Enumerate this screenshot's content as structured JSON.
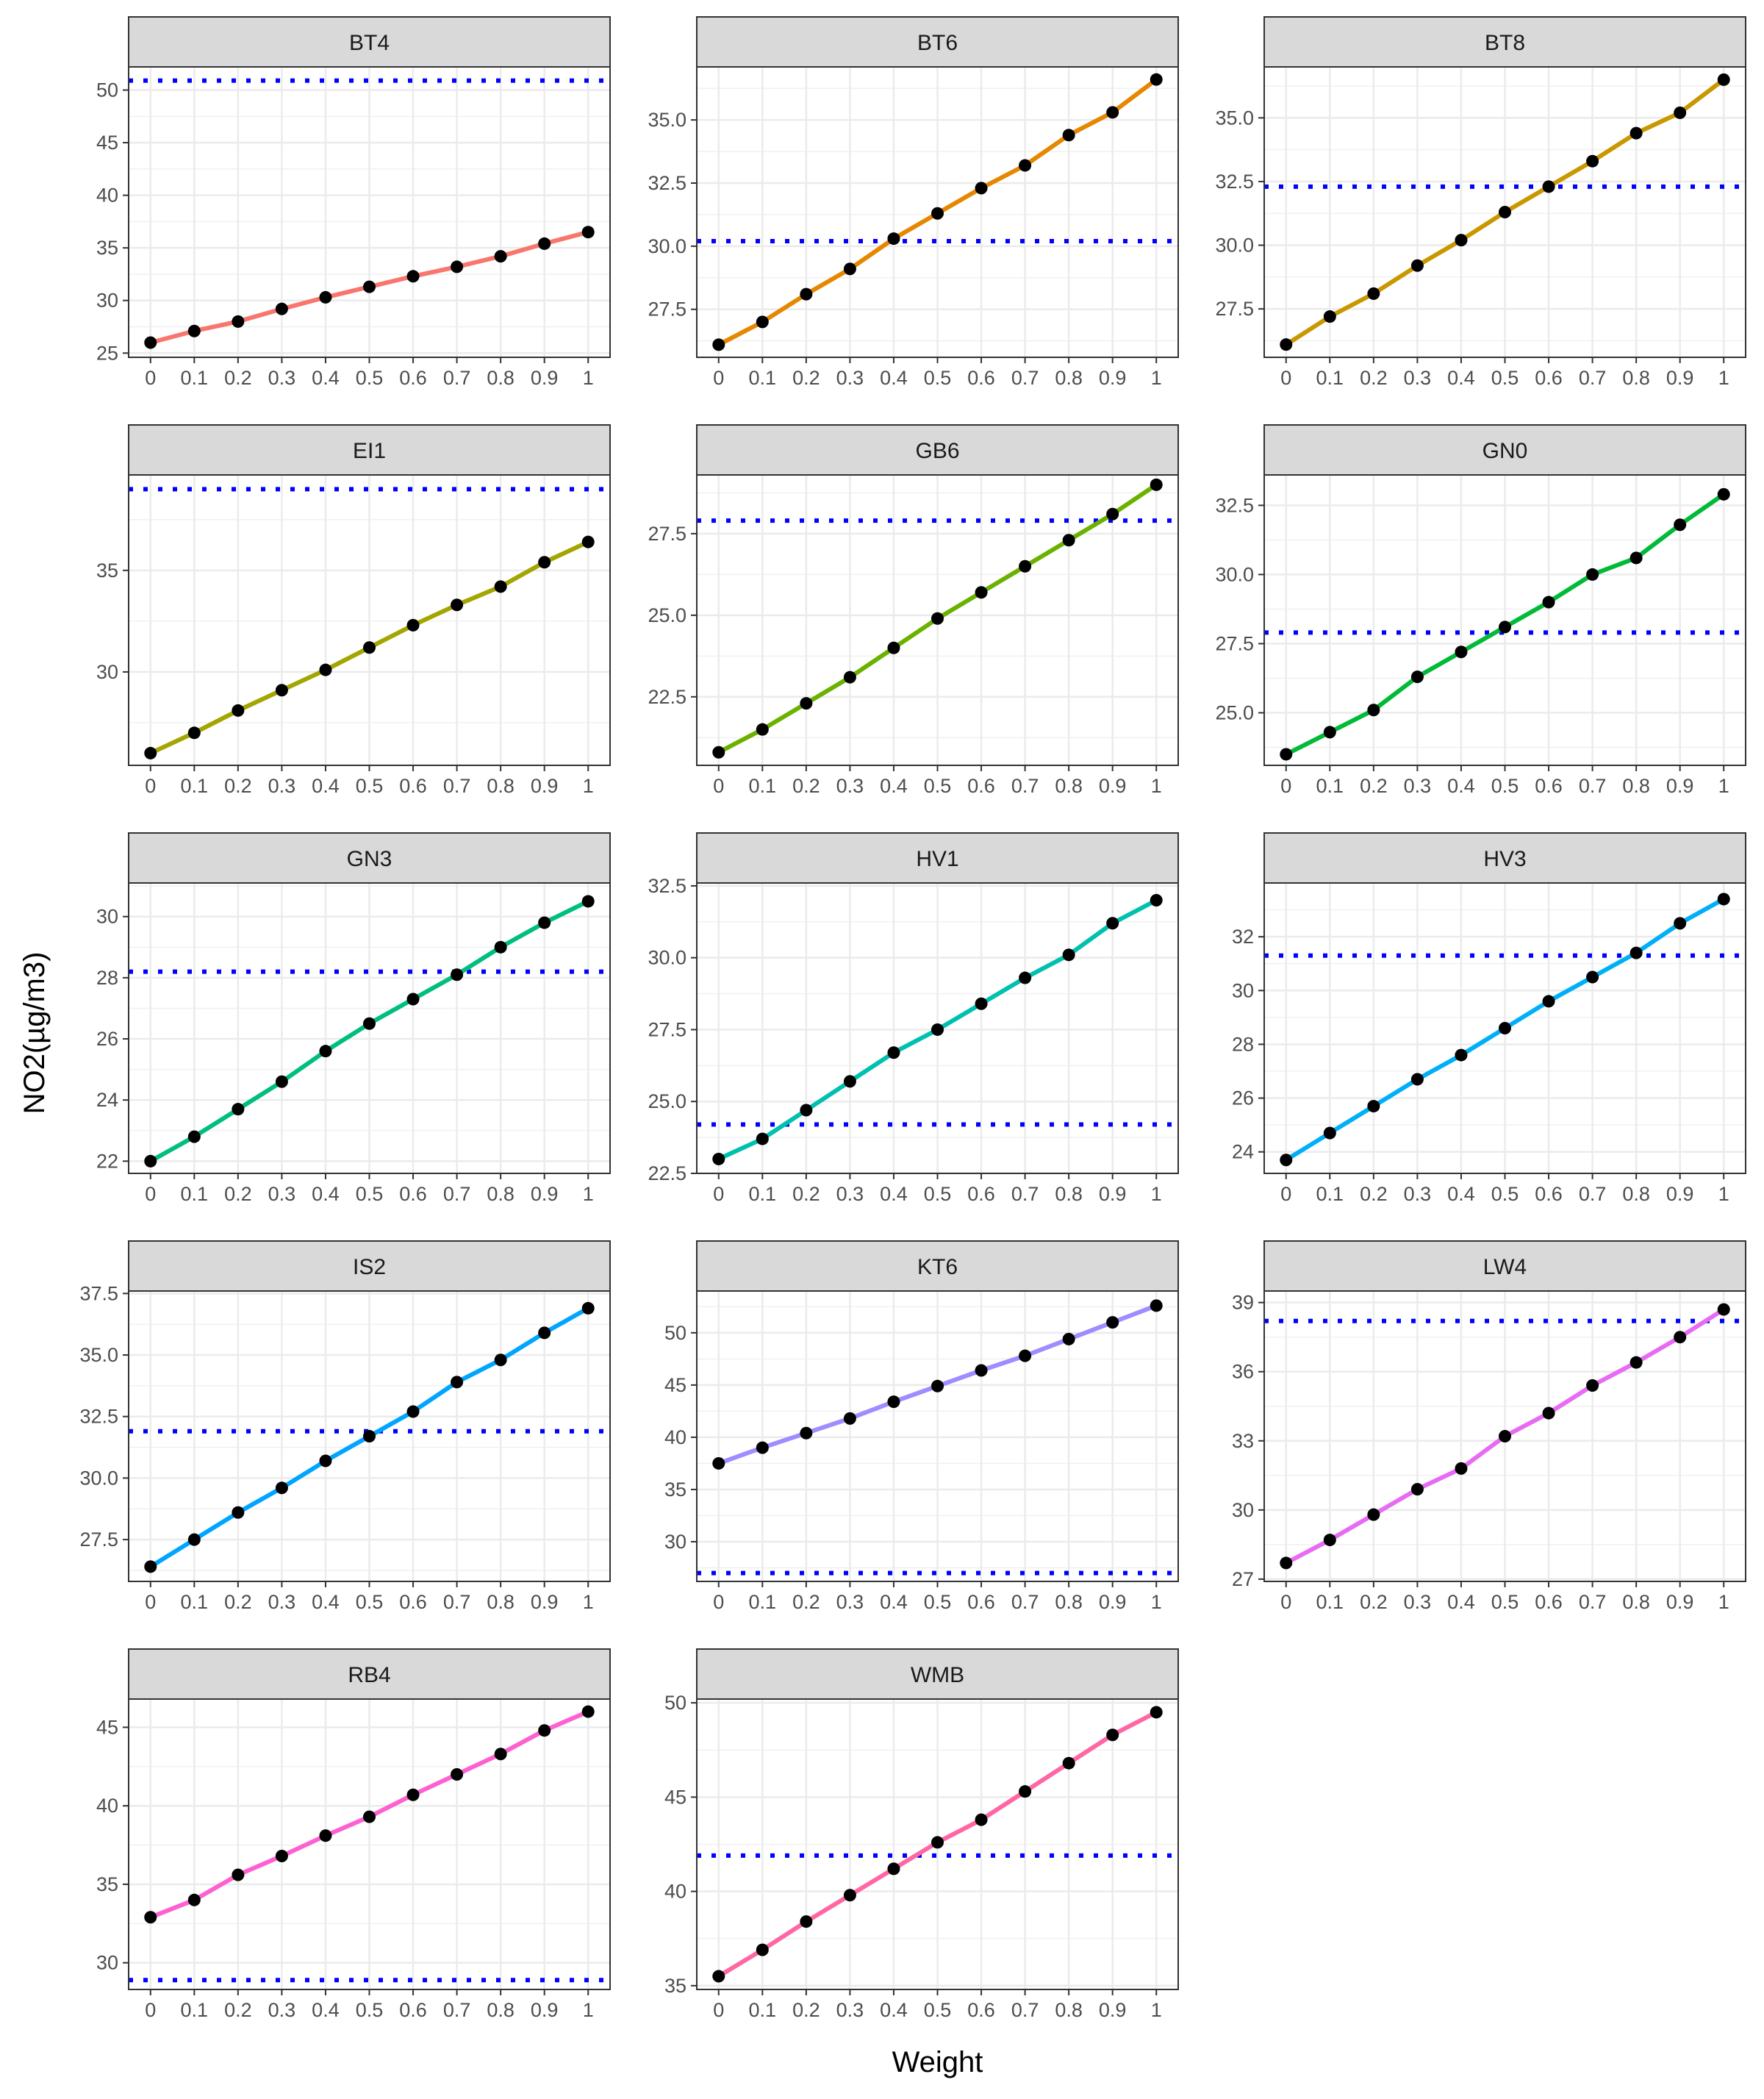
{
  "chart_data": {
    "type": "line",
    "layout": "facet-grid",
    "facet_columns": 3,
    "xlabel": "Weight",
    "ylabel": "NO2(µg/m3)",
    "x": [
      0,
      0.1,
      0.2,
      0.3,
      0.4,
      0.5,
      0.6,
      0.7,
      0.8,
      0.9,
      1
    ],
    "x_tick_labels": [
      "0",
      "0.1",
      "0.2",
      "0.3",
      "0.4",
      "0.5",
      "0.6",
      "0.7",
      "0.8",
      "0.9",
      "1"
    ],
    "reference_line_color": "#0000ff",
    "reference_line_style": "dotted",
    "point_color": "#000000",
    "grid": true,
    "panels": [
      {
        "name": "BT4",
        "color": "#f8766d",
        "ylim": [
          24.6,
          52.2
        ],
        "yticks": [
          25,
          30,
          35,
          40,
          45,
          50
        ],
        "ytick_labels": [
          "25",
          "30",
          "35",
          "40",
          "45",
          "50"
        ],
        "reference": 50.9,
        "values": [
          26.0,
          27.1,
          28.0,
          29.2,
          30.3,
          31.3,
          32.3,
          33.2,
          34.2,
          35.4,
          36.5
        ]
      },
      {
        "name": "BT6",
        "color": "#e58700",
        "ylim": [
          25.6,
          37.1
        ],
        "yticks": [
          27.5,
          30.0,
          32.5,
          35.0
        ],
        "ytick_labels": [
          "27.5",
          "30.0",
          "32.5",
          "35.0"
        ],
        "reference": 30.2,
        "values": [
          26.1,
          27.0,
          28.1,
          29.1,
          30.3,
          31.3,
          32.3,
          33.2,
          34.4,
          35.3,
          36.6
        ]
      },
      {
        "name": "BT8",
        "color": "#c99800",
        "ylim": [
          25.6,
          37.0
        ],
        "yticks": [
          27.5,
          30.0,
          32.5,
          35.0
        ],
        "ytick_labels": [
          "27.5",
          "30.0",
          "32.5",
          "35.0"
        ],
        "reference": 32.3,
        "values": [
          26.1,
          27.2,
          28.1,
          29.2,
          30.2,
          31.3,
          32.3,
          33.3,
          34.4,
          35.2,
          36.5
        ]
      },
      {
        "name": "EI1",
        "color": "#a3a500",
        "ylim": [
          25.4,
          39.7
        ],
        "yticks": [
          30,
          35
        ],
        "ytick_labels": [
          "30",
          "35"
        ],
        "reference": 39.0,
        "values": [
          26.0,
          27.0,
          28.1,
          29.1,
          30.1,
          31.2,
          32.3,
          33.3,
          34.2,
          35.4,
          36.4
        ]
      },
      {
        "name": "GB6",
        "color": "#6bb100",
        "ylim": [
          20.4,
          29.3
        ],
        "yticks": [
          22.5,
          25.0,
          27.5
        ],
        "ytick_labels": [
          "22.5",
          "25.0",
          "27.5"
        ],
        "reference": 27.9,
        "values": [
          20.8,
          21.5,
          22.3,
          23.1,
          24.0,
          24.9,
          25.7,
          26.5,
          27.3,
          28.1,
          29.0
        ]
      },
      {
        "name": "GN0",
        "color": "#00ba38",
        "ylim": [
          23.1,
          33.6
        ],
        "yticks": [
          25.0,
          27.5,
          30.0,
          32.5
        ],
        "ytick_labels": [
          "25.0",
          "27.5",
          "30.0",
          "32.5"
        ],
        "reference": 27.9,
        "values": [
          23.5,
          24.3,
          25.1,
          26.3,
          27.2,
          28.1,
          29.0,
          30.0,
          30.6,
          31.8,
          32.9
        ]
      },
      {
        "name": "GN3",
        "color": "#00bf7d",
        "ylim": [
          21.6,
          31.1
        ],
        "yticks": [
          22,
          24,
          26,
          28,
          30
        ],
        "ytick_labels": [
          "22",
          "24",
          "26",
          "28",
          "30"
        ],
        "reference": 28.2,
        "values": [
          22.0,
          22.8,
          23.7,
          24.6,
          25.6,
          26.5,
          27.3,
          28.1,
          29.0,
          29.8,
          30.5
        ]
      },
      {
        "name": "HV1",
        "color": "#00c0af",
        "ylim": [
          22.5,
          32.6
        ],
        "yticks": [
          22.5,
          25.0,
          27.5,
          30.0,
          32.5
        ],
        "ytick_labels": [
          "22.5",
          "25.0",
          "27.5",
          "30.0",
          "32.5"
        ],
        "reference": 24.2,
        "values": [
          23.0,
          23.7,
          24.7,
          25.7,
          26.7,
          27.5,
          28.4,
          29.3,
          30.1,
          31.2,
          32.0
        ]
      },
      {
        "name": "HV3",
        "color": "#00b0f6",
        "ylim": [
          23.2,
          34.0
        ],
        "yticks": [
          24,
          26,
          28,
          30,
          32
        ],
        "ytick_labels": [
          "24",
          "26",
          "28",
          "30",
          "32"
        ],
        "reference": 31.3,
        "values": [
          23.7,
          24.7,
          25.7,
          26.7,
          27.6,
          28.6,
          29.6,
          30.5,
          31.4,
          32.5,
          33.4
        ]
      },
      {
        "name": "IS2",
        "color": "#00a5ff",
        "ylim": [
          25.8,
          37.6
        ],
        "yticks": [
          27.5,
          30.0,
          32.5,
          35.0,
          37.5
        ],
        "ytick_labels": [
          "27.5",
          "30.0",
          "32.5",
          "35.0",
          "37.5"
        ],
        "reference": 31.9,
        "values": [
          26.4,
          27.5,
          28.6,
          29.6,
          30.7,
          31.7,
          32.7,
          33.9,
          34.8,
          35.9,
          36.9
        ]
      },
      {
        "name": "KT6",
        "color": "#9f8cff",
        "ylim": [
          26.2,
          54.0
        ],
        "yticks": [
          30,
          35,
          40,
          45,
          50
        ],
        "ytick_labels": [
          "30",
          "35",
          "40",
          "45",
          "50"
        ],
        "reference": 27.0,
        "values": [
          37.5,
          39.0,
          40.4,
          41.8,
          43.4,
          44.9,
          46.4,
          47.8,
          49.4,
          51.0,
          52.6
        ]
      },
      {
        "name": "LW4",
        "color": "#e76bf3",
        "ylim": [
          26.9,
          39.5
        ],
        "yticks": [
          27,
          30,
          33,
          36,
          39
        ],
        "ytick_labels": [
          "27",
          "30",
          "33",
          "36",
          "39"
        ],
        "reference": 38.2,
        "values": [
          27.7,
          28.7,
          29.8,
          30.9,
          31.8,
          33.2,
          34.2,
          35.4,
          36.4,
          37.5,
          38.7
        ]
      },
      {
        "name": "RB4",
        "color": "#fd61d1",
        "ylim": [
          28.3,
          46.8
        ],
        "yticks": [
          30,
          35,
          40,
          45
        ],
        "ytick_labels": [
          "30",
          "35",
          "40",
          "45"
        ],
        "reference": 28.9,
        "values": [
          32.9,
          34.0,
          35.6,
          36.8,
          38.1,
          39.3,
          40.7,
          42.0,
          43.3,
          44.8,
          46.0
        ]
      },
      {
        "name": "WMB",
        "color": "#ff67a4",
        "ylim": [
          34.8,
          50.2
        ],
        "yticks": [
          35,
          40,
          45,
          50
        ],
        "ytick_labels": [
          "35",
          "40",
          "45",
          "50"
        ],
        "reference": 41.9,
        "values": [
          35.5,
          36.9,
          38.4,
          39.8,
          41.2,
          42.6,
          43.8,
          45.3,
          46.8,
          48.3,
          49.5
        ]
      }
    ]
  }
}
